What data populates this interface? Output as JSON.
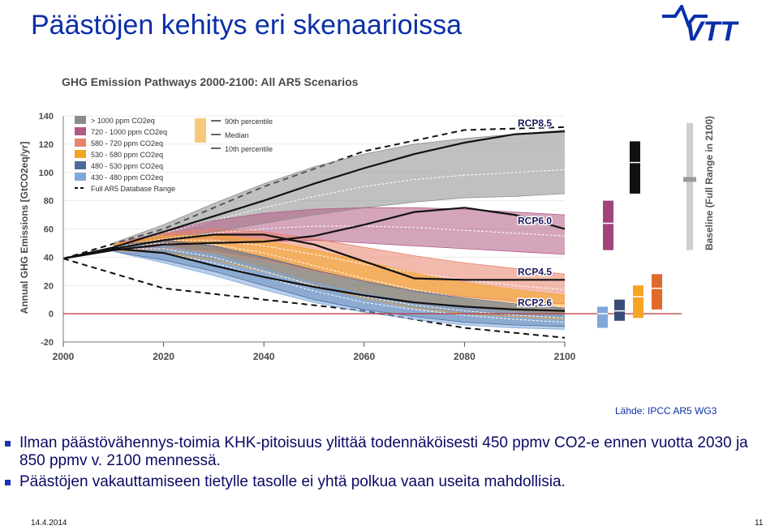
{
  "slide": {
    "title": "Päästöjen kehitys eri skenaarioissa",
    "source": "Lähde: IPCC AR5 WG3",
    "bullets": [
      "Ilman päästövähennys-toimia KHK-pitoisuus ylittää todennäköisesti 450 ppmv CO2-e ennen vuotta 2030 ja 850 ppmv v. 2100 mennessä.",
      "Päästöjen vakauttamiseen tietylle tasolle ei yhtä polkua vaan useita mahdollisia."
    ],
    "footer_date": "14.4.2014",
    "page_number": "11",
    "logo_text": "VTT",
    "logo_icon": "vtt-logo"
  },
  "chart_data": {
    "type": "area",
    "title": "GHG Emission Pathways 2000-2100: All AR5 Scenarios",
    "ylabel": "Annual GHG Emissions [GtCO2eq/yr]",
    "xlim": [
      2000,
      2100
    ],
    "ylim": [
      -20,
      140
    ],
    "x_ticks": [
      2000,
      2020,
      2040,
      2060,
      2080,
      2100
    ],
    "y_ticks": [
      -20,
      0,
      20,
      40,
      60,
      80,
      100,
      120,
      140
    ],
    "legend_position": "top-left",
    "percentile_legend": [
      "90th percentile",
      "Median",
      "10th percentile"
    ],
    "side_label": "Baseline (Full Range in 2100)",
    "side_range": [
      45,
      135
    ],
    "side_median": 95,
    "series": [
      {
        "name": "> 1000 ppm CO2eq",
        "color": "#8c8c8c",
        "x": [
          2010,
          2020,
          2030,
          2040,
          2050,
          2060,
          2070,
          2080,
          2090,
          2100
        ],
        "p90": [
          50,
          63,
          78,
          92,
          104,
          113,
          120,
          124,
          127,
          130
        ],
        "median": [
          47,
          57,
          66,
          75,
          83,
          90,
          95,
          98,
          100,
          102
        ],
        "p10": [
          45,
          52,
          58,
          64,
          70,
          75,
          79,
          82,
          83,
          85
        ]
      },
      {
        "name": "720 - 1000 ppm CO2eq",
        "color": "#b05a84",
        "x": [
          2010,
          2020,
          2030,
          2040,
          2050,
          2060,
          2070,
          2080,
          2090,
          2100
        ],
        "p90": [
          49,
          58,
          66,
          71,
          74,
          75,
          75,
          74,
          72,
          70
        ],
        "median": [
          47,
          53,
          57,
          60,
          62,
          62,
          61,
          59,
          57,
          55
        ],
        "p10": [
          45,
          48,
          50,
          51,
          52,
          50,
          48,
          46,
          44,
          42
        ]
      },
      {
        "name": "580 - 720 ppm CO2eq",
        "color": "#e8826a",
        "x": [
          2010,
          2020,
          2030,
          2040,
          2050,
          2060,
          2070,
          2080,
          2090,
          2100
        ],
        "p90": [
          49,
          57,
          60,
          58,
          53,
          47,
          41,
          36,
          32,
          28
        ],
        "median": [
          47,
          52,
          52,
          48,
          42,
          35,
          29,
          24,
          20,
          17
        ],
        "p10": [
          45,
          46,
          44,
          38,
          30,
          23,
          16,
          12,
          9,
          7
        ]
      },
      {
        "name": "530 - 580 ppm CO2eq",
        "color": "#f5a523",
        "x": [
          2010,
          2020,
          2030,
          2040,
          2050,
          2060,
          2070,
          2080,
          2090,
          2100
        ],
        "p90": [
          49,
          55,
          56,
          52,
          45,
          37,
          29,
          22,
          17,
          13
        ],
        "median": [
          47,
          50,
          49,
          43,
          34,
          25,
          17,
          11,
          7,
          5
        ],
        "p10": [
          45,
          43,
          38,
          30,
          20,
          11,
          4,
          0,
          -2,
          -4
        ]
      },
      {
        "name": "480 - 530 ppm CO2eq",
        "color": "#4d6a9a",
        "x": [
          2010,
          2020,
          2030,
          2040,
          2050,
          2060,
          2070,
          2080,
          2090,
          2100
        ],
        "p90": [
          48,
          52,
          48,
          40,
          31,
          23,
          16,
          11,
          7,
          4
        ],
        "median": [
          46,
          46,
          40,
          30,
          20,
          12,
          6,
          2,
          -1,
          -3
        ],
        "p10": [
          44,
          38,
          30,
          20,
          10,
          3,
          -2,
          -6,
          -8,
          -9
        ]
      },
      {
        "name": "430 - 480 ppm CO2eq",
        "color": "#7fa8d8",
        "x": [
          2010,
          2020,
          2030,
          2040,
          2050,
          2060,
          2070,
          2080,
          2090,
          2100
        ],
        "p90": [
          48,
          48,
          42,
          32,
          22,
          14,
          8,
          4,
          1,
          -1
        ],
        "median": [
          46,
          43,
          36,
          26,
          16,
          8,
          3,
          -1,
          -4,
          -6
        ],
        "p10": [
          44,
          36,
          27,
          17,
          8,
          1,
          -4,
          -8,
          -10,
          -11
        ]
      }
    ],
    "envelope": {
      "name": "Full AR5 Database Range",
      "x": [
        2000,
        2020,
        2040,
        2060,
        2080,
        2100
      ],
      "upper": [
        39,
        60,
        90,
        115,
        130,
        132
      ],
      "lower": [
        39,
        18,
        10,
        2,
        -10,
        -17
      ]
    },
    "rcp": [
      {
        "name": "RCP8.5",
        "x": [
          2000,
          2010,
          2020,
          2030,
          2040,
          2050,
          2060,
          2070,
          2080,
          2090,
          2100
        ],
        "y": [
          39,
          47,
          58,
          69,
          80,
          92,
          103,
          113,
          121,
          127,
          129
        ]
      },
      {
        "name": "RCP6.0",
        "x": [
          2000,
          2010,
          2020,
          2030,
          2040,
          2050,
          2060,
          2070,
          2080,
          2090,
          2100
        ],
        "y": [
          39,
          45,
          49,
          50,
          51,
          55,
          63,
          72,
          75,
          70,
          60
        ]
      },
      {
        "name": "RCP4.5",
        "x": [
          2000,
          2010,
          2020,
          2030,
          2040,
          2050,
          2060,
          2070,
          2080,
          2090,
          2100
        ],
        "y": [
          39,
          46,
          52,
          56,
          56,
          49,
          37,
          25,
          24,
          24,
          24
        ]
      },
      {
        "name": "RCP2.6",
        "x": [
          2000,
          2010,
          2020,
          2030,
          2040,
          2050,
          2060,
          2070,
          2080,
          2090,
          2100
        ],
        "y": [
          39,
          46,
          43,
          34,
          26,
          19,
          13,
          8,
          5,
          3,
          2
        ]
      }
    ],
    "range_bars_2100": [
      {
        "name": "430 - 480 ppm CO2eq",
        "color": "#7fa8d8",
        "low": -10,
        "high": 5,
        "median": 0
      },
      {
        "name": "480 - 530 ppm CO2eq",
        "color": "#3a4d78",
        "low": -5,
        "high": 10,
        "median": 2
      },
      {
        "name": "530 - 580 ppm CO2eq",
        "color": "#f5a523",
        "low": -3,
        "high": 20,
        "median": 12
      },
      {
        "name": "580 - 720 ppm CO2eq",
        "color": "#e06a2a",
        "low": 3,
        "high": 28,
        "median": 18
      },
      {
        "name": "720 - 1000 ppm CO2eq",
        "color": "#a0457a",
        "low": 45,
        "high": 80,
        "median": 64
      },
      {
        "name": "> 1000 ppm CO2eq",
        "color": "#111111",
        "low": 85,
        "high": 122,
        "median": 107
      }
    ]
  }
}
